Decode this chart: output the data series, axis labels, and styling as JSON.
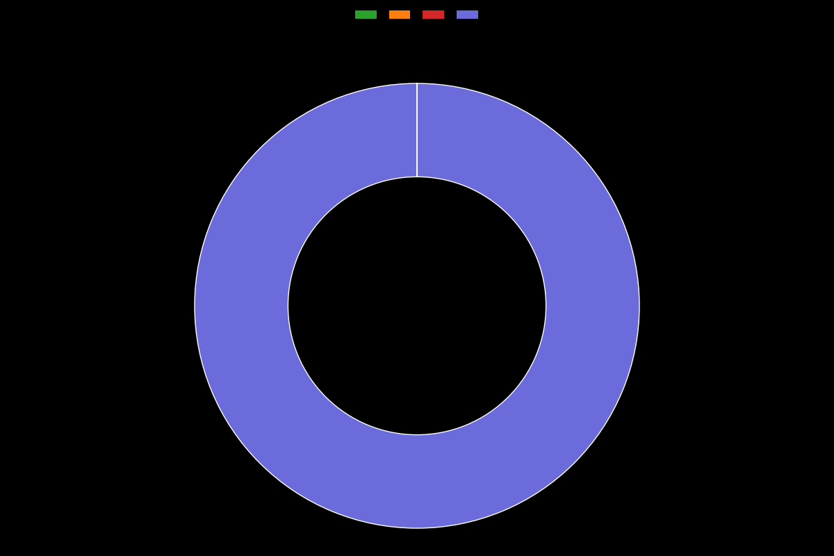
{
  "slices": [
    0.001,
    0.001,
    0.001,
    99.997
  ],
  "colors": [
    "#2ca02c",
    "#ff7f0e",
    "#d62728",
    "#6b6bdb"
  ],
  "legend_labels": [
    "",
    "",
    "",
    ""
  ],
  "background_color": "#000000",
  "wedge_edge_color": "#ffffff",
  "wedge_linewidth": 1.0,
  "donut_width": 0.42,
  "startangle": 90
}
